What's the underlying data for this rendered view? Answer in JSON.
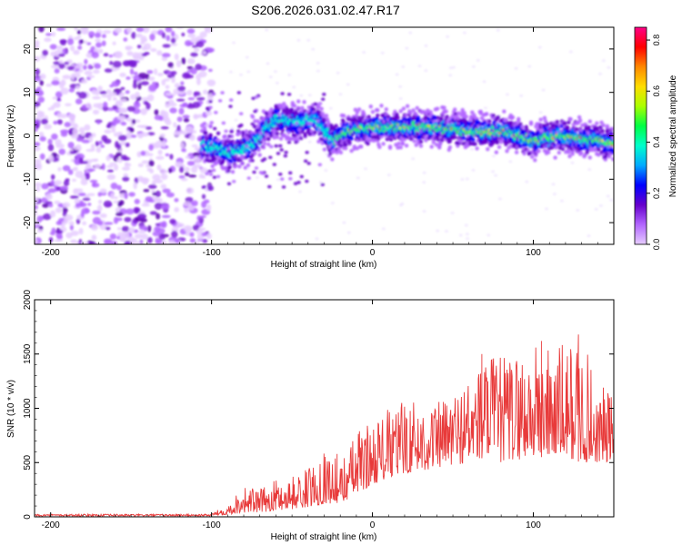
{
  "title": "S206.2026.031.02.47.R17",
  "chart_data": [
    {
      "type": "heatmap",
      "xlabel": "Height of straight line (km)",
      "ylabel": "Frequency (Hz)",
      "xlim": [
        -210,
        150
      ],
      "ylim": [
        -25,
        25
      ],
      "xticks": [
        -200,
        -100,
        0,
        100
      ],
      "yticks": [
        -20,
        -10,
        0,
        10,
        20
      ],
      "xtick_labels": [
        "-200",
        "-100",
        "0",
        "100"
      ],
      "ytick_labels": [
        "-20",
        "-10",
        "0",
        "10",
        "20"
      ],
      "ridge": {
        "description_points_x": [
          -105,
          -90,
          -75,
          -60,
          -45,
          -35,
          -25,
          -15,
          0,
          20,
          40,
          60,
          80,
          100,
          120,
          140,
          150
        ],
        "description_points_y": [
          -2,
          -4,
          -2,
          4,
          3,
          4,
          -1,
          1,
          2,
          2,
          2,
          1,
          1,
          -1,
          0,
          -1,
          -2
        ]
      },
      "noise_region_x": [
        -210,
        -100
      ],
      "colorbar": {
        "label": "Normalized spectral amplitude",
        "range": [
          0.0,
          0.85
        ],
        "ticks": [
          0.0,
          0.2,
          0.4,
          0.6,
          0.8
        ],
        "tick_labels": [
          "0.0",
          "0.2",
          "0.4",
          "0.6",
          "0.8"
        ],
        "colors": [
          "#e6ccff",
          "#b266ff",
          "#6600cc",
          "#0000ff",
          "#00aaff",
          "#00ffcc",
          "#00ff44",
          "#aaff00",
          "#ffdd00",
          "#ff8800",
          "#ff0000",
          "#ff0088"
        ]
      }
    },
    {
      "type": "line",
      "xlabel": "Height of straight line (km)",
      "ylabel": "SNR (10 * v/v)",
      "xlim": [
        -210,
        150
      ],
      "ylim": [
        0,
        2000
      ],
      "xticks": [
        -200,
        -100,
        0,
        100
      ],
      "yticks": [
        0,
        500,
        1000,
        1500,
        2000
      ],
      "xtick_labels": [
        "-200",
        "-100",
        "0",
        "100"
      ],
      "ytick_labels": [
        "0",
        "500",
        "1000",
        "1500",
        "2000"
      ],
      "series_color": "#e83a3a",
      "envelope": {
        "x": [
          -210,
          -100,
          -90,
          -80,
          -70,
          -60,
          -50,
          -40,
          -30,
          -20,
          -10,
          0,
          20,
          40,
          60,
          70,
          80,
          100,
          120,
          130,
          140,
          150
        ],
        "y_max": [
          20,
          30,
          120,
          300,
          250,
          350,
          380,
          450,
          650,
          500,
          800,
          900,
          1100,
          1050,
          1300,
          1500,
          1500,
          1600,
          1600,
          1700,
          1200,
          1200
        ],
        "y_base": [
          10,
          12,
          20,
          40,
          40,
          60,
          70,
          90,
          120,
          130,
          200,
          300,
          400,
          450,
          500,
          550,
          500,
          550,
          550,
          500,
          500,
          500
        ]
      },
      "peaks": [
        {
          "x": -22,
          "y": 580
        },
        {
          "x": 105,
          "y": 1620
        },
        {
          "x": 128,
          "y": 1680
        },
        {
          "x": 68,
          "y": 1500
        }
      ]
    }
  ]
}
